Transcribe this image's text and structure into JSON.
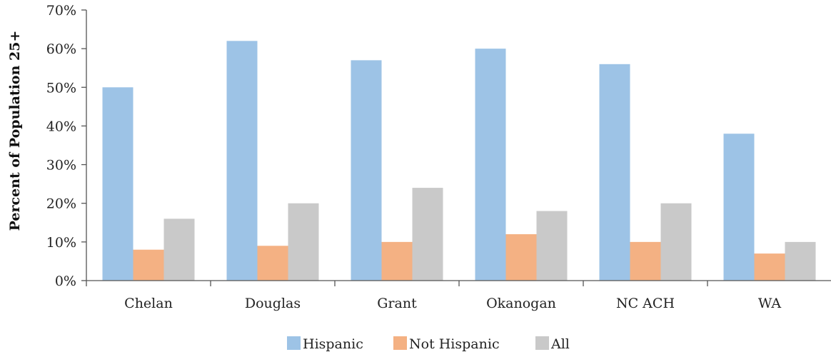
{
  "chart_data": {
    "type": "bar",
    "title": "",
    "xlabel": "",
    "ylabel": "Percent of Population 25+",
    "ylim": [
      0,
      70
    ],
    "yticks": [
      "0%",
      "10%",
      "20%",
      "30%",
      "40%",
      "50%",
      "60%",
      "70%"
    ],
    "categories": [
      "Chelan",
      "Douglas",
      "Grant",
      "Okanogan",
      "NC ACH",
      "WA"
    ],
    "series": [
      {
        "name": "Hispanic",
        "color": "#9dc3e6",
        "values": [
          50,
          62,
          57,
          60,
          56,
          38
        ]
      },
      {
        "name": "Not Hispanic",
        "color": "#f4b183",
        "values": [
          8,
          9,
          10,
          12,
          10,
          7
        ]
      },
      {
        "name": "All",
        "color": "#c9c9c9",
        "values": [
          16,
          20,
          24,
          18,
          20,
          10
        ]
      }
    ],
    "grid": false,
    "legend_position": "bottom"
  }
}
